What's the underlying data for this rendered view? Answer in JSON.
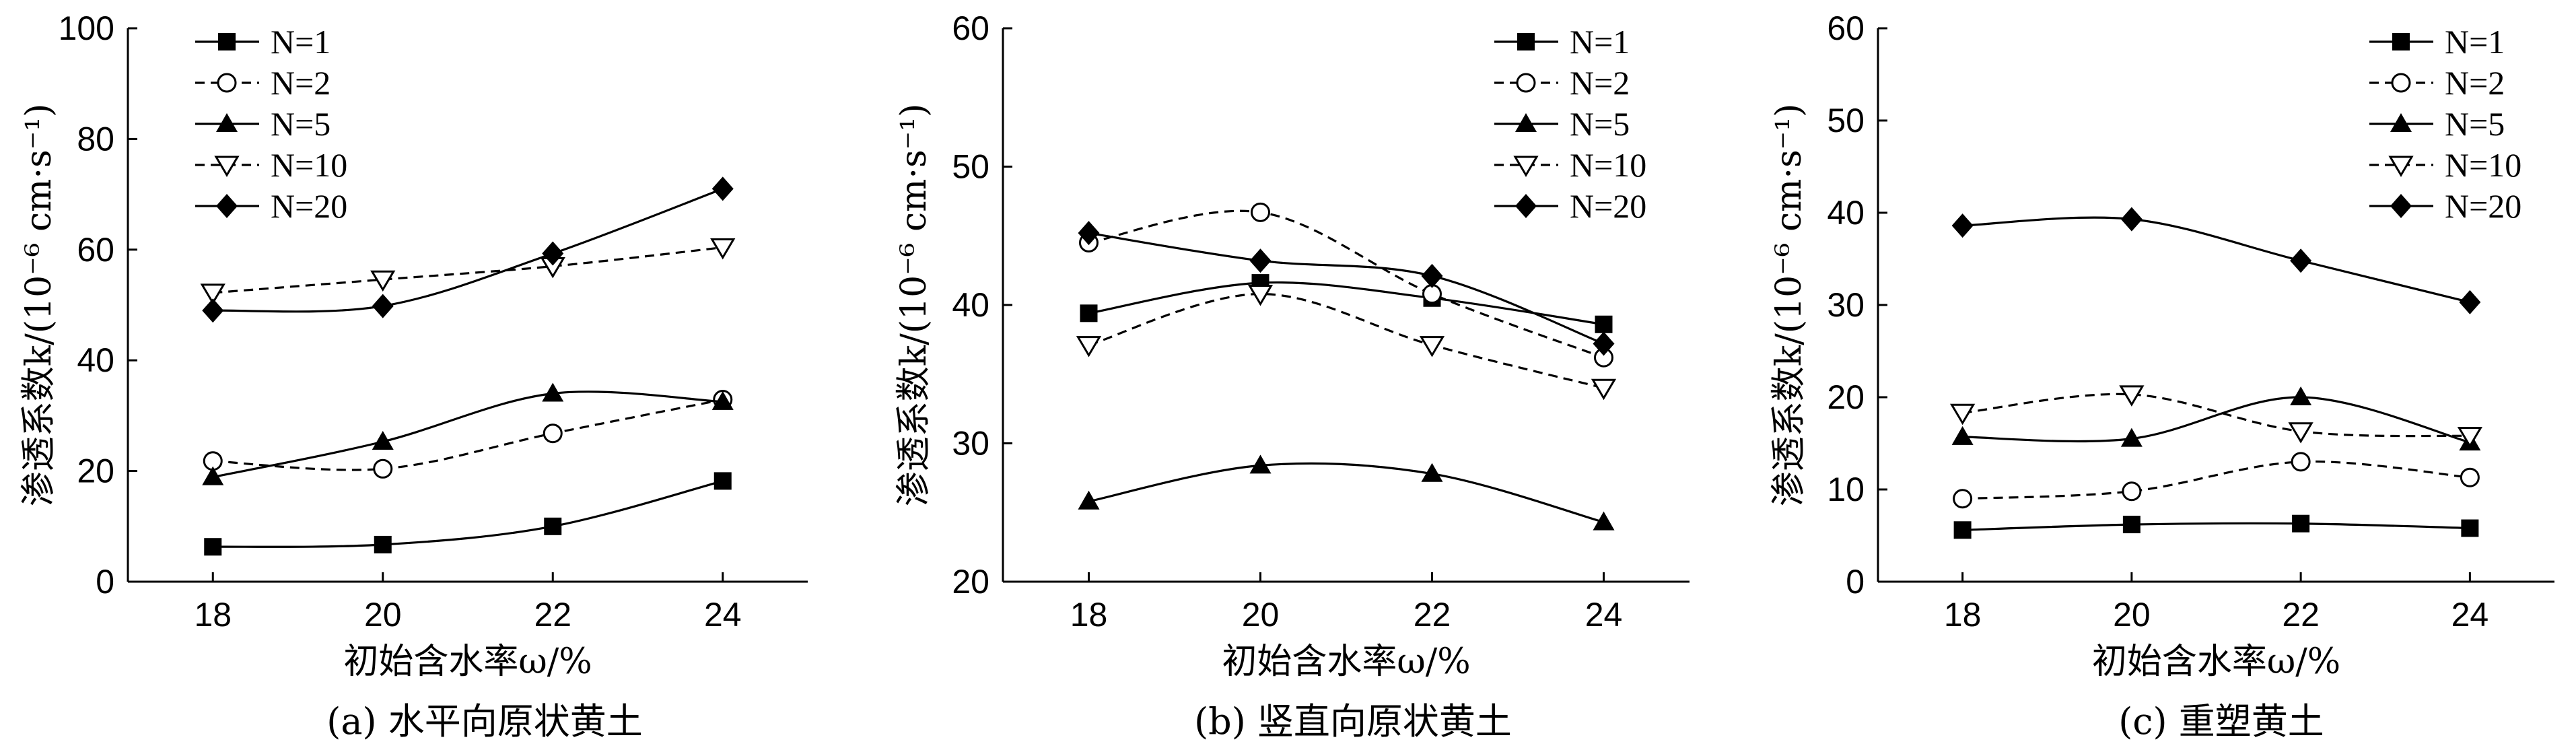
{
  "chart_data": [
    {
      "type": "line",
      "caption": "(a) 水平向原状黄土",
      "xlabel": "初始含水率ω/%",
      "ylabel": "渗透系数k/(10⁻⁶ cm·s⁻¹)",
      "x": [
        18,
        20,
        22,
        24
      ],
      "xticks": [
        "18",
        "20",
        "22",
        "24"
      ],
      "xlim": [
        17,
        25
      ],
      "ylim": [
        0,
        100
      ],
      "yticks": [
        "0",
        "20",
        "40",
        "60",
        "80",
        "100"
      ],
      "legend_position": "top-left",
      "series": [
        {
          "name": "N=1",
          "marker": "square-filled",
          "line": "solid",
          "values": [
            6.3,
            6.7,
            10.0,
            18.2
          ]
        },
        {
          "name": "N=2",
          "marker": "circle-open",
          "line": "dashed",
          "values": [
            21.8,
            20.4,
            26.8,
            32.9
          ]
        },
        {
          "name": "N=5",
          "marker": "triangle-filled",
          "line": "solid",
          "values": [
            18.9,
            25.3,
            34.0,
            32.5
          ]
        },
        {
          "name": "N=10",
          "marker": "triangle-down-open",
          "line": "dashed",
          "values": [
            52.2,
            54.6,
            57.0,
            60.4
          ]
        },
        {
          "name": "N=20",
          "marker": "diamond-filled",
          "line": "solid",
          "values": [
            49.0,
            49.8,
            59.3,
            71.0
          ]
        }
      ]
    },
    {
      "type": "line",
      "caption": "(b) 竖直向原状黄土",
      "xlabel": "初始含水率ω/%",
      "ylabel": "渗透系数k/(10⁻⁶ cm·s⁻¹)",
      "x": [
        18,
        20,
        22,
        24
      ],
      "xticks": [
        "18",
        "20",
        "22",
        "24"
      ],
      "xlim": [
        17,
        25
      ],
      "ylim": [
        20,
        60
      ],
      "yticks": [
        "20",
        "30",
        "40",
        "50",
        "60"
      ],
      "legend_position": "top-right",
      "series": [
        {
          "name": "N=1",
          "marker": "square-filled",
          "line": "solid",
          "values": [
            39.4,
            41.6,
            40.5,
            38.6
          ]
        },
        {
          "name": "N=2",
          "marker": "circle-open",
          "line": "dashed",
          "values": [
            44.5,
            46.7,
            40.8,
            36.2
          ]
        },
        {
          "name": "N=5",
          "marker": "triangle-filled",
          "line": "solid",
          "values": [
            25.8,
            28.4,
            27.8,
            24.3
          ]
        },
        {
          "name": "N=10",
          "marker": "triangle-down-open",
          "line": "dashed",
          "values": [
            37.1,
            40.8,
            37.1,
            34.0
          ]
        },
        {
          "name": "N=20",
          "marker": "diamond-filled",
          "line": "solid",
          "values": [
            45.2,
            43.2,
            42.1,
            37.2
          ]
        }
      ]
    },
    {
      "type": "line",
      "caption": "(c) 重塑黄土",
      "xlabel": "初始含水率ω/%",
      "ylabel": "渗透系数k/(10⁻⁶ cm·s⁻¹)",
      "x": [
        18,
        20,
        22,
        24
      ],
      "xticks": [
        "18",
        "20",
        "22",
        "24"
      ],
      "xlim": [
        17,
        25
      ],
      "ylim": [
        0,
        60
      ],
      "yticks": [
        "0",
        "10",
        "20",
        "30",
        "40",
        "50",
        "60"
      ],
      "legend_position": "top-right",
      "series": [
        {
          "name": "N=1",
          "marker": "square-filled",
          "line": "solid",
          "values": [
            5.6,
            6.2,
            6.3,
            5.8
          ]
        },
        {
          "name": "N=2",
          "marker": "circle-open",
          "line": "dashed",
          "values": [
            9.0,
            9.8,
            13.0,
            11.3
          ]
        },
        {
          "name": "N=5",
          "marker": "triangle-filled",
          "line": "solid",
          "values": [
            15.7,
            15.5,
            20.0,
            15.1
          ]
        },
        {
          "name": "N=10",
          "marker": "triangle-down-open",
          "line": "dashed",
          "values": [
            18.3,
            20.3,
            16.3,
            15.8
          ]
        },
        {
          "name": "N=20",
          "marker": "diamond-filled",
          "line": "solid",
          "values": [
            38.6,
            39.3,
            34.8,
            30.3
          ]
        }
      ]
    }
  ]
}
